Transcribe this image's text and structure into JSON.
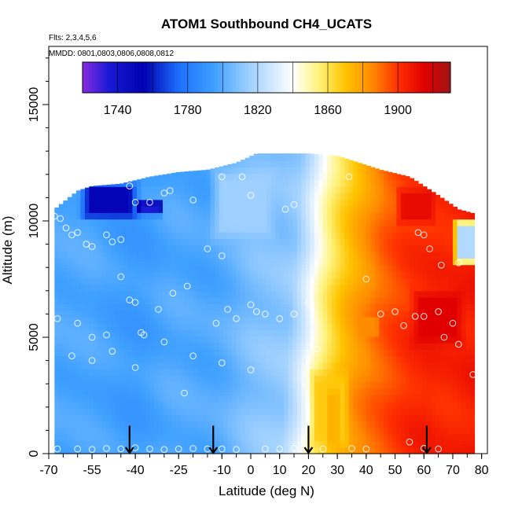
{
  "chart_data": {
    "type": "heatmap",
    "title": "ATOM1 Southbound CH4_UCATS",
    "note_flights": "Flts: 2,3,4,5,6",
    "note_dates": "MMDD: 0801,0803,0806,0808,0812",
    "xlabel": "Latitude (deg N)",
    "ylabel": "Altitude (m)",
    "xlim": [
      -70,
      82
    ],
    "ylim": [
      0,
      17500
    ],
    "x_tick_labels": [
      "-70",
      "-55",
      "-40",
      "-25",
      "-10",
      "0",
      "10",
      "20",
      "30",
      "40",
      "50",
      "60",
      "70",
      "80"
    ],
    "x_tick_values": [
      -70,
      -55,
      -40,
      -25,
      -10,
      0,
      10,
      20,
      30,
      40,
      50,
      60,
      70,
      80
    ],
    "y_tick_labels": [
      "0",
      "5000",
      "10000",
      "15000"
    ],
    "y_tick_values": [
      0,
      5000,
      10000,
      15000
    ],
    "colorbar": {
      "min": 1720,
      "max": 1930,
      "tick_labels": [
        "1740",
        "1780",
        "1820",
        "1860",
        "1900"
      ],
      "tick_values": [
        1740,
        1780,
        1820,
        1860,
        1900
      ],
      "stops": [
        {
          "v": 1720,
          "c": "#8a2be2"
        },
        {
          "v": 1735,
          "c": "#1a1ad6"
        },
        {
          "v": 1755,
          "c": "#0000b0"
        },
        {
          "v": 1775,
          "c": "#1e6fff"
        },
        {
          "v": 1795,
          "c": "#3fa0ff"
        },
        {
          "v": 1815,
          "c": "#9fd0ff"
        },
        {
          "v": 1840,
          "c": "#ffffff"
        },
        {
          "v": 1855,
          "c": "#fff27a"
        },
        {
          "v": 1870,
          "c": "#ffc400"
        },
        {
          "v": 1885,
          "c": "#ff8c00"
        },
        {
          "v": 1900,
          "c": "#ff3000"
        },
        {
          "v": 1915,
          "c": "#e00000"
        },
        {
          "v": 1930,
          "c": "#a01515"
        }
      ]
    },
    "field": {
      "background_profile_lat": [
        -70,
        -55,
        -40,
        -25,
        -10,
        0,
        10,
        15,
        20,
        25,
        30,
        35,
        40,
        50,
        60,
        70,
        80
      ],
      "background_profile_ch4": [
        1800,
        1795,
        1795,
        1798,
        1802,
        1808,
        1815,
        1830,
        1848,
        1862,
        1875,
        1885,
        1892,
        1898,
        1905,
        1905,
        1905
      ],
      "top_envelope": [
        [
          -68,
          10500
        ],
        [
          -60,
          11300
        ],
        [
          -55,
          11500
        ],
        [
          -45,
          11600
        ],
        [
          -35,
          11900
        ],
        [
          -25,
          12100
        ],
        [
          -15,
          12200
        ],
        [
          -5,
          12500
        ],
        [
          2,
          12900
        ],
        [
          20,
          12900
        ],
        [
          30,
          12800
        ],
        [
          45,
          12200
        ],
        [
          55,
          11900
        ],
        [
          65,
          11100
        ],
        [
          72,
          10500
        ],
        [
          78,
          10300
        ]
      ],
      "bottom_lat_range": [
        -68,
        80
      ],
      "features": [
        {
          "lat_range": [
            -60,
            -38
          ],
          "alt_range": [
            10000,
            11700
          ],
          "ch4": 1752
        },
        {
          "lat_range": [
            -40,
            -30
          ],
          "alt_range": [
            10200,
            10900
          ],
          "ch4": 1735
        },
        {
          "lat_range": [
            -15,
            10
          ],
          "alt_range": [
            9000,
            12500
          ],
          "ch4": 1815
        },
        {
          "lat_range": [
            20,
            35
          ],
          "alt_range": [
            0,
            3800
          ],
          "ch4": 1868
        },
        {
          "lat_range": [
            26,
            31
          ],
          "alt_range": [
            0,
            3000
          ],
          "ch4": 1875
        },
        {
          "lat_range": [
            55,
            75
          ],
          "alt_range": [
            4500,
            7200
          ],
          "ch4": 1915
        },
        {
          "lat_range": [
            50,
            65
          ],
          "alt_range": [
            9800,
            11500
          ],
          "ch4": 1912
        },
        {
          "lat_range": [
            70,
            80
          ],
          "alt_range": [
            8000,
            10200
          ],
          "ch4": 1820
        },
        {
          "lat_range": [
            37,
            45
          ],
          "alt_range": [
            5000,
            6000
          ],
          "ch4": 1885
        }
      ]
    },
    "samples": [
      [
        -68,
        10200
      ],
      [
        -66,
        10100
      ],
      [
        -64,
        9700
      ],
      [
        -62,
        9400
      ],
      [
        -60,
        9500
      ],
      [
        -57,
        9000
      ],
      [
        -55,
        8900
      ],
      [
        -50,
        9400
      ],
      [
        -48,
        9100
      ],
      [
        -45,
        9200
      ],
      [
        -42,
        11500
      ],
      [
        -40,
        10800
      ],
      [
        -35,
        10800
      ],
      [
        -30,
        11200
      ],
      [
        -28,
        11300
      ],
      [
        -20,
        10900
      ],
      [
        -10,
        11900
      ],
      [
        -3,
        11900
      ],
      [
        0,
        11100
      ],
      [
        12,
        10500
      ],
      [
        15,
        10700
      ],
      [
        34,
        11900
      ],
      [
        -67,
        5800
      ],
      [
        -60,
        5600
      ],
      [
        -55,
        5000
      ],
      [
        -50,
        5100
      ],
      [
        -45,
        7600
      ],
      [
        -42,
        6600
      ],
      [
        -40,
        6500
      ],
      [
        -38,
        5200
      ],
      [
        -37,
        5100
      ],
      [
        -32,
        6200
      ],
      [
        -27,
        6900
      ],
      [
        -22,
        7200
      ],
      [
        -15,
        8800
      ],
      [
        -10,
        8500
      ],
      [
        -12,
        5600
      ],
      [
        -8,
        6200
      ],
      [
        -5,
        5800
      ],
      [
        0,
        6400
      ],
      [
        2,
        6100
      ],
      [
        5,
        6000
      ],
      [
        10,
        5800
      ],
      [
        15,
        6000
      ],
      [
        20,
        6500
      ],
      [
        23,
        4500
      ],
      [
        -62,
        4200
      ],
      [
        -55,
        4000
      ],
      [
        -48,
        4400
      ],
      [
        -40,
        3700
      ],
      [
        -30,
        4800
      ],
      [
        -20,
        4200
      ],
      [
        -10,
        3900
      ],
      [
        0,
        3600
      ],
      [
        -23,
        2600
      ],
      [
        -67,
        200
      ],
      [
        -60,
        200
      ],
      [
        -55,
        180
      ],
      [
        -50,
        220
      ],
      [
        -45,
        200
      ],
      [
        -40,
        250
      ],
      [
        -35,
        200
      ],
      [
        -30,
        180
      ],
      [
        -25,
        200
      ],
      [
        -20,
        220
      ],
      [
        -15,
        200
      ],
      [
        -10,
        200
      ],
      [
        -5,
        180
      ],
      [
        5,
        200
      ],
      [
        10,
        200
      ],
      [
        15,
        230
      ],
      [
        25,
        200
      ],
      [
        35,
        220
      ],
      [
        40,
        200
      ],
      [
        55,
        500
      ],
      [
        60,
        230
      ],
      [
        65,
        200
      ],
      [
        40,
        7500
      ],
      [
        45,
        6000
      ],
      [
        50,
        6100
      ],
      [
        53,
        5500
      ],
      [
        57,
        5900
      ],
      [
        60,
        5900
      ],
      [
        65,
        6100
      ],
      [
        67,
        5000
      ],
      [
        70,
        5600
      ],
      [
        72,
        4700
      ],
      [
        77,
        3400
      ],
      [
        58,
        9500
      ],
      [
        60,
        9400
      ],
      [
        62,
        8800
      ],
      [
        66,
        8100
      ],
      [
        72,
        8200
      ]
    ],
    "annotations": {
      "arrow_latitudes": [
        -42,
        -13,
        20,
        61
      ]
    }
  }
}
